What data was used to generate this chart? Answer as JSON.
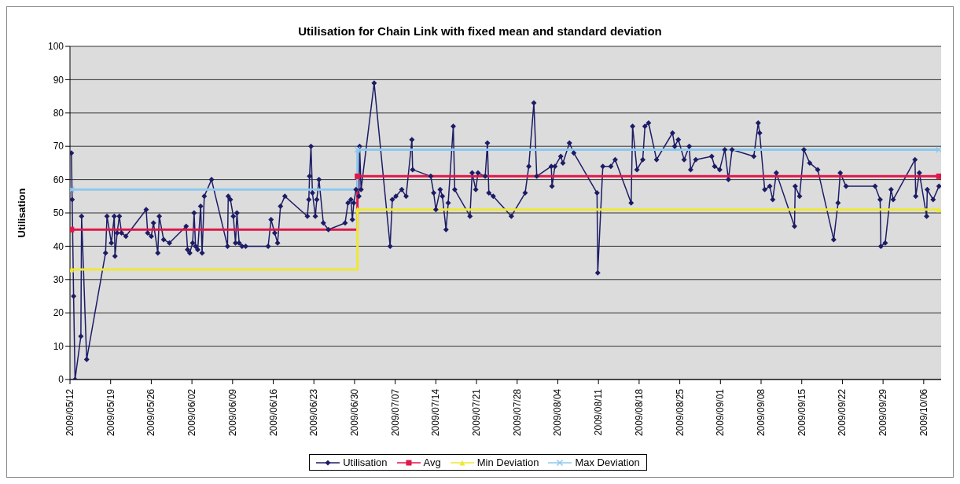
{
  "chart_data": {
    "type": "line",
    "title": "Utilisation for Chain Link with fixed mean and standard deviation",
    "ylabel": "Utilisation",
    "xlim": [
      "2009-05-12",
      "2009-10-09"
    ],
    "xticks": [
      {
        "value": "2009-05-12",
        "label": "2009/05/12"
      },
      {
        "value": "2009-05-19",
        "label": "2009/05/19"
      },
      {
        "value": "2009-05-26",
        "label": "2009/05/26"
      },
      {
        "value": "2009-06-02",
        "label": "2009/06/02"
      },
      {
        "value": "2009-06-09",
        "label": "2009/06/09"
      },
      {
        "value": "2009-06-16",
        "label": "2009/06/16"
      },
      {
        "value": "2009-06-23",
        "label": "2009/06/23"
      },
      {
        "value": "2009-06-30",
        "label": "2009/06/30"
      },
      {
        "value": "2009-07-07",
        "label": "2009/07/07"
      },
      {
        "value": "2009-07-14",
        "label": "2009/07/14"
      },
      {
        "value": "2009-07-21",
        "label": "2009/07/21"
      },
      {
        "value": "2009-07-28",
        "label": "2009/07/28"
      },
      {
        "value": "2009-08-04",
        "label": "2009/08/04"
      },
      {
        "value": "2009-08-11",
        "label": "2009/08/11"
      },
      {
        "value": "2009-08-18",
        "label": "2009/08/18"
      },
      {
        "value": "2009-08-25",
        "label": "2009/08/25"
      },
      {
        "value": "2009-09-01",
        "label": "2009/09/01"
      },
      {
        "value": "2009-09-08",
        "label": "2009/09/08"
      },
      {
        "value": "2009-09-15",
        "label": "2009/09/15"
      },
      {
        "value": "2009-09-22",
        "label": "2009/09/22"
      },
      {
        "value": "2009-09-29",
        "label": "2009/09/29"
      },
      {
        "value": "2009-10-06",
        "label": "2009/10/06"
      }
    ],
    "ylim": [
      0,
      100
    ],
    "yticks": [
      0,
      10,
      20,
      30,
      40,
      50,
      60,
      70,
      80,
      90,
      100
    ],
    "grid": "y",
    "legend": "bottom",
    "series": [
      {
        "name": "Utilisation",
        "type": "line",
        "marker": "diamond",
        "color": "#1c1c66",
        "x": [
          "2009-05-12T06:00",
          "2009-05-12T09:00",
          "2009-05-12T15:00",
          "2009-05-12T21:00",
          "2009-05-13T21:00",
          "2009-05-14T00:00",
          "2009-05-14T21:00",
          "2009-05-18T03:00",
          "2009-05-18T09:00",
          "2009-05-19T03:00",
          "2009-05-19T15:00",
          "2009-05-19T18:00",
          "2009-05-20T03:00",
          "2009-05-20T12:00",
          "2009-05-20T21:00",
          "2009-05-21T15:00",
          "2009-05-25T03:00",
          "2009-05-25T09:00",
          "2009-05-26T00:00",
          "2009-05-26T09:00",
          "2009-05-27T03:00",
          "2009-05-27T09:00",
          "2009-05-28T03:00",
          "2009-05-29T03:00",
          "2009-06-01T00:00",
          "2009-06-01T06:00",
          "2009-06-01T15:00",
          "2009-06-02T03:00",
          "2009-06-02T09:00",
          "2009-06-02T15:00",
          "2009-06-03T00:00",
          "2009-06-03T12:00",
          "2009-06-03T18:00",
          "2009-06-04T03:00",
          "2009-06-05T09:00",
          "2009-06-08T03:00",
          "2009-06-08T06:00",
          "2009-06-08T15:00",
          "2009-06-09T03:00",
          "2009-06-09T12:00",
          "2009-06-09T18:00",
          "2009-06-10T03:00",
          "2009-06-10T15:00",
          "2009-06-11T06:00",
          "2009-06-15T03:00",
          "2009-06-15T15:00",
          "2009-06-16T06:00",
          "2009-06-16T18:00",
          "2009-06-17T06:00",
          "2009-06-18T00:00",
          "2009-06-21T21:00",
          "2009-06-22T03:00",
          "2009-06-22T06:00",
          "2009-06-22T12:00",
          "2009-06-22T18:00",
          "2009-06-23T06:00",
          "2009-06-23T12:00",
          "2009-06-23T21:00",
          "2009-06-24T15:00",
          "2009-06-25T12:00",
          "2009-06-28T09:00",
          "2009-06-28T21:00",
          "2009-06-29T09:00",
          "2009-06-29T15:00",
          "2009-06-29T21:00",
          "2009-06-30T06:00",
          "2009-06-30T18:00",
          "2009-06-30T21:00",
          "2009-07-01T03:00",
          "2009-07-03T09:00",
          "2009-07-06T03:00",
          "2009-07-06T12:00",
          "2009-07-07T03:00",
          "2009-07-08T03:00",
          "2009-07-08T21:00",
          "2009-07-09T21:00",
          "2009-07-10T00:00",
          "2009-07-13T03:00",
          "2009-07-13T15:00",
          "2009-07-14T00:00",
          "2009-07-14T18:00",
          "2009-07-15T03:00",
          "2009-07-15T18:00",
          "2009-07-16T03:00",
          "2009-07-17T00:00",
          "2009-07-17T06:00",
          "2009-07-19T21:00",
          "2009-07-20T06:00",
          "2009-07-20T21:00",
          "2009-07-21T06:00",
          "2009-07-22T12:00",
          "2009-07-22T21:00",
          "2009-07-23T03:00",
          "2009-07-23T21:00",
          "2009-07-27T00:00",
          "2009-07-29T09:00",
          "2009-07-30T00:00",
          "2009-07-30T21:00",
          "2009-07-31T09:00",
          "2009-08-02T21:00",
          "2009-08-03T00:00",
          "2009-08-03T12:00",
          "2009-08-04T12:00",
          "2009-08-04T21:00",
          "2009-08-06T00:00",
          "2009-08-06T18:00",
          "2009-08-10T18:00",
          "2009-08-10T21:00",
          "2009-08-11T18:00",
          "2009-08-13T03:00",
          "2009-08-13T21:00",
          "2009-08-16T15:00",
          "2009-08-16T21:00",
          "2009-08-17T15:00",
          "2009-08-18T15:00",
          "2009-08-19T00:00",
          "2009-08-19T15:00",
          "2009-08-21T00:00",
          "2009-08-23T18:00",
          "2009-08-24T03:00",
          "2009-08-24T18:00",
          "2009-08-25T18:00",
          "2009-08-26T15:00",
          "2009-08-26T21:00",
          "2009-08-27T18:00",
          "2009-08-30T12:00",
          "2009-08-31T00:00",
          "2009-08-31T21:00",
          "2009-09-01T18:00",
          "2009-09-02T09:00",
          "2009-09-03T00:00",
          "2009-09-06T18:00",
          "2009-09-07T12:00",
          "2009-09-07T18:00",
          "2009-09-08T15:00",
          "2009-09-09T12:00",
          "2009-09-10T00:00",
          "2009-09-10T15:00",
          "2009-09-13T18:00",
          "2009-09-13T21:00",
          "2009-09-14T15:00",
          "2009-09-15T09:00",
          "2009-09-16T09:00",
          "2009-09-17T18:00",
          "2009-09-20T12:00",
          "2009-09-21T06:00",
          "2009-09-21T15:00",
          "2009-09-22T15:00",
          "2009-09-27T15:00",
          "2009-09-28T12:00",
          "2009-09-28T15:00",
          "2009-09-29T09:00",
          "2009-09-30T09:00",
          "2009-09-30T18:00",
          "2009-10-04T12:00",
          "2009-10-04T15:00",
          "2009-10-05T06:00",
          "2009-10-06T12:00",
          "2009-10-06T15:00",
          "2009-10-07T15:00",
          "2009-10-08T15:00"
        ],
        "values": [
          68,
          54,
          25,
          0,
          13,
          49,
          6,
          38,
          49,
          41,
          49,
          37,
          44,
          49,
          44,
          43,
          51,
          44,
          43,
          47,
          38,
          49,
          42,
          41,
          46,
          39,
          38,
          41,
          50,
          40,
          39,
          52,
          38,
          55,
          60,
          40,
          55,
          54,
          49,
          41,
          50,
          41,
          40,
          40,
          40,
          48,
          44,
          41,
          52,
          55,
          49,
          54,
          61,
          70,
          56,
          49,
          54,
          60,
          47,
          45,
          47,
          53,
          54,
          48,
          53,
          57,
          55,
          70,
          57,
          89,
          40,
          54,
          55,
          57,
          55,
          72,
          63,
          61,
          56,
          51,
          57,
          55,
          45,
          53,
          76,
          57,
          49,
          62,
          57,
          62,
          61,
          71,
          56,
          55,
          49,
          56,
          64,
          83,
          61,
          64,
          58,
          64,
          67,
          65,
          71,
          68,
          56,
          32,
          64,
          64,
          66,
          53,
          76,
          63,
          66,
          76,
          77,
          66,
          74,
          70,
          72,
          66,
          70,
          63,
          66,
          67,
          64,
          63,
          69,
          60,
          69,
          67,
          77,
          74,
          57,
          58,
          54,
          62,
          46,
          58,
          55,
          69,
          65,
          63,
          42,
          53,
          62,
          58,
          58,
          54,
          40,
          41,
          57,
          54,
          66,
          55,
          62,
          49,
          57,
          54,
          58
        ]
      },
      {
        "name": "Avg",
        "type": "step",
        "marker": "square",
        "color": "#e0174a",
        "x": [
          "2009-05-12T06:00",
          "2009-06-30T12:00",
          "2009-10-08T15:00"
        ],
        "values": [
          45,
          61,
          61
        ]
      },
      {
        "name": "Min Deviation",
        "type": "step",
        "marker": "triangle",
        "color": "#eee836",
        "x": [
          "2009-05-12T06:00",
          "2009-06-30T12:00",
          "2009-10-08T15:00"
        ],
        "values": [
          33,
          51,
          51
        ]
      },
      {
        "name": "Max Deviation",
        "type": "step",
        "marker": "cross",
        "color": "#8ec8ee",
        "x": [
          "2009-05-12T06:00",
          "2009-06-30T12:00",
          "2009-10-08T15:00"
        ],
        "values": [
          57,
          69,
          69
        ]
      }
    ]
  }
}
